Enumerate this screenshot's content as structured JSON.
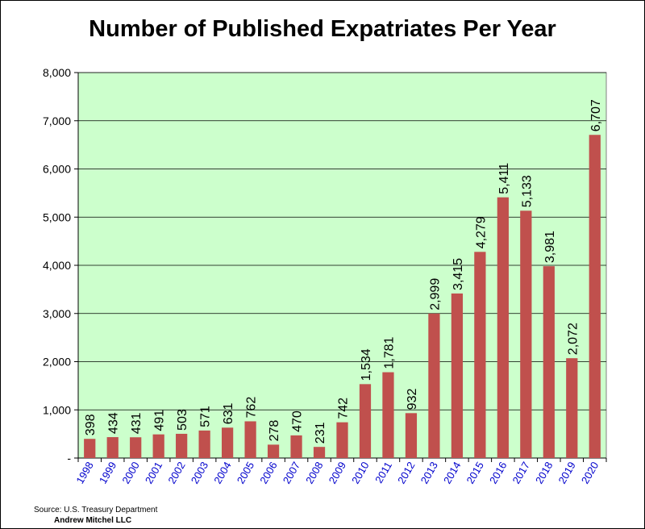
{
  "title": "Number of Published Expatriates Per Year",
  "source": "Source: U.S. Treasury Department",
  "author": "Andrew Mitchel LLC",
  "colors": {
    "plot_background": "#ccffcc",
    "bar": "#c0504d",
    "x_tick_label": "#0000cc",
    "grid": "#000000"
  },
  "chart_data": {
    "type": "bar",
    "title": "Number of Published Expatriates Per Year",
    "xlabel": "",
    "ylabel": "",
    "categories": [
      "1998",
      "1999",
      "2000",
      "2001",
      "2002",
      "2003",
      "2004",
      "2005",
      "2006",
      "2007",
      "2008",
      "2009",
      "2010",
      "2011",
      "2012",
      "2013",
      "2014",
      "2015",
      "2016",
      "2017",
      "2018",
      "2019",
      "2020"
    ],
    "values": [
      398,
      434,
      431,
      491,
      503,
      571,
      631,
      762,
      278,
      470,
      231,
      742,
      1534,
      1781,
      932,
      2999,
      3415,
      4279,
      5411,
      5133,
      3981,
      2072,
      6707
    ],
    "value_labels": [
      "398",
      "434",
      "431",
      "491",
      "503",
      "571",
      "631",
      "762",
      "278",
      "470",
      "231",
      "742",
      "1,534",
      "1,781",
      "932",
      "2,999",
      "3,415",
      "4,279",
      "5,411",
      "5,133",
      "3,981",
      "2,072",
      "6,707"
    ],
    "ylim": [
      0,
      8000
    ],
    "yticks": [
      0,
      1000,
      2000,
      3000,
      4000,
      5000,
      6000,
      7000,
      8000
    ],
    "ytick_labels": [
      "-",
      "1,000",
      "2,000",
      "3,000",
      "4,000",
      "5,000",
      "6,000",
      "7,000",
      "8,000"
    ],
    "grid": true,
    "legend": "none"
  }
}
